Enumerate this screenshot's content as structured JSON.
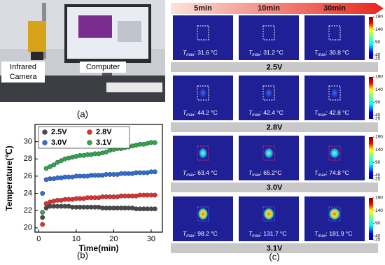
{
  "photo": {
    "label": "(a)",
    "camera_label": [
      "Infrared",
      "Camera"
    ],
    "computer_label": "Computer"
  },
  "chart_data": {
    "type": "scatter",
    "label": "(b)",
    "xlabel": "Time(min)",
    "ylabel": "Temperature(℃)",
    "x": [
      1,
      2,
      3,
      4,
      5,
      6,
      7,
      8,
      9,
      10,
      11,
      12,
      13,
      14,
      15,
      16,
      17,
      18,
      19,
      20,
      21,
      22,
      23,
      24,
      25,
      26,
      27,
      28,
      29,
      30,
      31
    ],
    "series": [
      {
        "name": "2.5V",
        "color": "#4a4a4a",
        "values": [
          21.2,
          22.3,
          22.5,
          22.5,
          22.5,
          22.5,
          22.5,
          22.5,
          22.4,
          22.4,
          22.4,
          22.4,
          22.4,
          22.4,
          22.4,
          22.4,
          22.3,
          22.3,
          22.3,
          22.3,
          22.3,
          22.3,
          22.3,
          22.3,
          22.3,
          22.2,
          22.2,
          22.2,
          22.2,
          22.2,
          22.2
        ]
      },
      {
        "name": "2.8V",
        "color": "#e0322e",
        "values": [
          20.4,
          22.8,
          23.0,
          23.1,
          23.2,
          23.2,
          23.3,
          23.3,
          23.3,
          23.4,
          23.4,
          23.4,
          23.5,
          23.5,
          23.5,
          23.5,
          23.6,
          23.6,
          23.6,
          23.6,
          23.6,
          23.7,
          23.7,
          23.7,
          23.7,
          23.7,
          23.8,
          23.8,
          23.8,
          23.8,
          23.8
        ]
      },
      {
        "name": "3.0V",
        "color": "#2f6fd6",
        "values": [
          24.0,
          25.6,
          25.7,
          25.7,
          25.8,
          25.8,
          25.9,
          25.9,
          25.9,
          26.0,
          26.0,
          26.0,
          26.0,
          26.1,
          26.1,
          26.1,
          26.1,
          26.2,
          26.2,
          26.2,
          26.2,
          26.3,
          26.3,
          26.3,
          26.3,
          26.4,
          26.4,
          26.4,
          26.4,
          26.5,
          26.5
        ]
      },
      {
        "name": "3.1V",
        "color": "#2ea84a",
        "values": [
          21.8,
          26.9,
          27.1,
          27.3,
          27.6,
          27.8,
          28.0,
          28.1,
          28.2,
          28.3,
          28.4,
          28.4,
          28.5,
          28.5,
          28.6,
          28.6,
          28.7,
          28.8,
          29.0,
          29.1,
          29.2,
          29.2,
          29.3,
          29.4,
          29.5,
          29.6,
          29.7,
          29.7,
          29.8,
          29.9,
          29.9
        ]
      }
    ],
    "xlim": [
      -1,
      33
    ],
    "xticks": [
      0,
      10,
      20,
      30
    ],
    "ylim": [
      19.5,
      32
    ],
    "yticks": [
      20,
      22,
      24,
      26,
      28,
      30
    ],
    "grid": false
  },
  "thermal": {
    "label": "(c)",
    "times": [
      "5min",
      "10min",
      "30min"
    ],
    "symbol": "T",
    "subscript": "max",
    "colorbar": {
      "range": [
        25,
        190
      ],
      "ticks": [
        190,
        140,
        90,
        40,
        25
      ]
    },
    "rows": [
      {
        "voltage": "2.5V",
        "readings": [
          ": 31.6 °C",
          ": 31.2 °C",
          ": 30.8 °C"
        ]
      },
      {
        "voltage": "2.8V",
        "readings": [
          ": 44.2 °C",
          ": 42.4 °C",
          ": 42.8 °C"
        ]
      },
      {
        "voltage": "3.0V",
        "readings": [
          ": 63.4 °C",
          ": 65.2°C",
          ": 74.8 °C"
        ]
      },
      {
        "voltage": "3.1V",
        "readings": [
          ": 98.2 °C",
          ": 131.7 °C",
          ": 181.9 °C"
        ]
      }
    ]
  }
}
